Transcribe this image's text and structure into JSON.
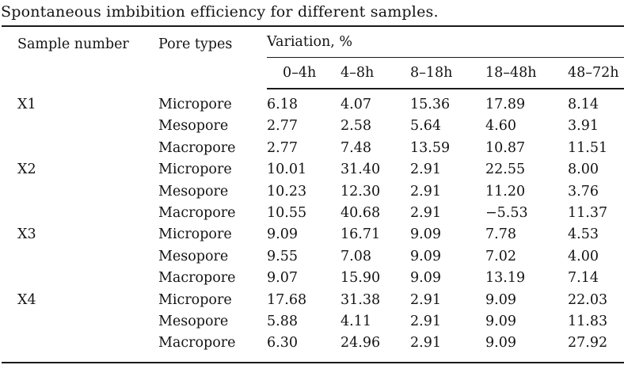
{
  "caption": "Spontaneous imbibition efficiency for different samples.",
  "colors": {
    "background": "#ffffff",
    "text": "#131313",
    "rule": "#1a1a1a"
  },
  "table": {
    "headers": {
      "sample_number": "Sample number",
      "pore_types": "Pore types",
      "variation": "Variation, %"
    },
    "time_intervals": [
      "0–4h",
      "4–8h",
      "8–18h",
      "18–48h",
      "48–72h"
    ],
    "rows": [
      {
        "sample": "X1",
        "pore_type": "Micropore",
        "values": [
          "6.18",
          "4.07",
          "15.36",
          "17.89",
          "8.14"
        ]
      },
      {
        "sample": "",
        "pore_type": "Mesopore",
        "values": [
          "2.77",
          "2.58",
          "5.64",
          "4.60",
          "3.91"
        ]
      },
      {
        "sample": "",
        "pore_type": "Macropore",
        "values": [
          "2.77",
          "7.48",
          "13.59",
          "10.87",
          "11.51"
        ]
      },
      {
        "sample": "X2",
        "pore_type": "Micropore",
        "values": [
          "10.01",
          "31.40",
          "2.91",
          "22.55",
          "8.00"
        ]
      },
      {
        "sample": "",
        "pore_type": "Mesopore",
        "values": [
          "10.23",
          "12.30",
          "2.91",
          "11.20",
          "3.76"
        ]
      },
      {
        "sample": "",
        "pore_type": "Macropore",
        "values": [
          "10.55",
          "40.68",
          "2.91",
          "−5.53",
          "11.37"
        ]
      },
      {
        "sample": "X3",
        "pore_type": "Micropore",
        "values": [
          "9.09",
          "16.71",
          "9.09",
          "7.78",
          "4.53"
        ]
      },
      {
        "sample": "",
        "pore_type": "Mesopore",
        "values": [
          "9.55",
          "7.08",
          "9.09",
          "7.02",
          "4.00"
        ]
      },
      {
        "sample": "",
        "pore_type": "Macropore",
        "values": [
          "9.07",
          "15.90",
          "9.09",
          "13.19",
          "7.14"
        ]
      },
      {
        "sample": "X4",
        "pore_type": "Micropore",
        "values": [
          "17.68",
          "31.38",
          "2.91",
          "9.09",
          "22.03"
        ]
      },
      {
        "sample": "",
        "pore_type": "Mesopore",
        "values": [
          "5.88",
          "4.11",
          "2.91",
          "9.09",
          "11.83"
        ]
      },
      {
        "sample": "",
        "pore_type": "Macropore",
        "values": [
          "6.30",
          "24.96",
          "2.91",
          "9.09",
          "27.92"
        ]
      }
    ]
  }
}
